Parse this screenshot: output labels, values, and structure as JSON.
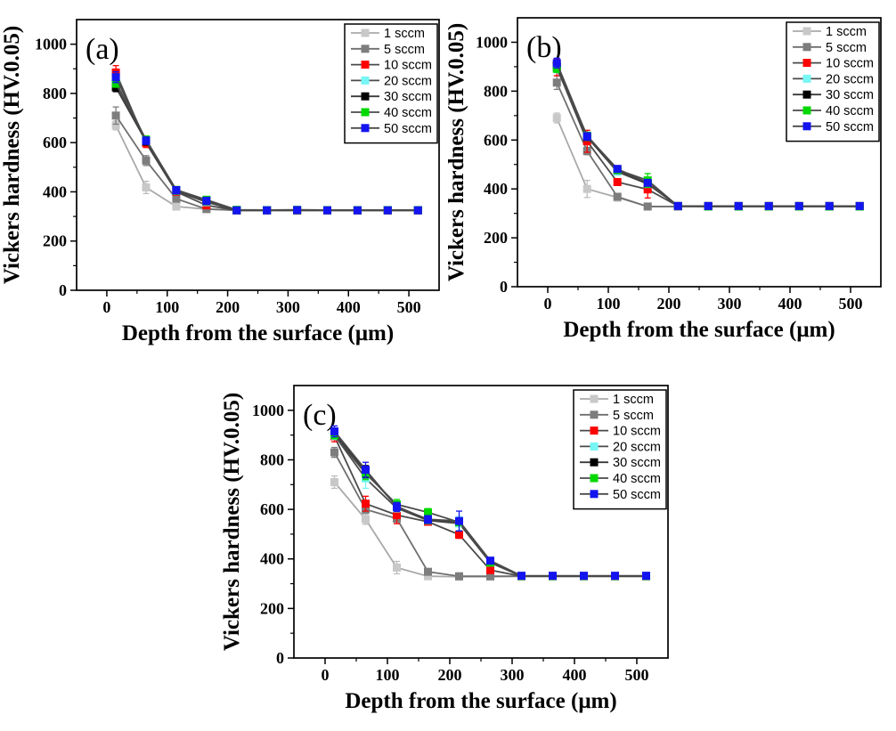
{
  "figure": {
    "xlabel": "Depth from the surface (μm)",
    "ylabel": "Vickers hardness (HV.0.05)"
  },
  "chart_data": [
    {
      "type": "line",
      "panel_label": "(a)",
      "xlabel": "Depth from the surface (μm)",
      "ylabel": "Vickers hardness (HV.0.05)",
      "xlim": [
        -50,
        550
      ],
      "ylim": [
        0,
        1100
      ],
      "xticks": [
        0,
        100,
        200,
        300,
        400,
        500
      ],
      "yticks": [
        0,
        200,
        400,
        600,
        800,
        1000
      ],
      "minor_xtick_step": 50,
      "minor_ytick_step": 100,
      "grid": false,
      "marker": "square",
      "legend_position": "top-right",
      "x": [
        15,
        65,
        115,
        165,
        215,
        265,
        315,
        365,
        415,
        465,
        515
      ],
      "series": [
        {
          "name": "1 sccm",
          "color": "#c8c8c8",
          "line_color": "#a9a9a9",
          "values": [
            670,
            418,
            340,
            330,
            325,
            325,
            325,
            325,
            325,
            325,
            325
          ],
          "errors": [
            18,
            25,
            8,
            5,
            4,
            4,
            4,
            4,
            4,
            4,
            4
          ]
        },
        {
          "name": "5 sccm",
          "color": "#7d7d7d",
          "line_color": "#6f6f6f",
          "values": [
            710,
            527,
            372,
            330,
            325,
            325,
            325,
            325,
            325,
            325,
            325
          ],
          "errors": [
            35,
            20,
            10,
            5,
            4,
            4,
            4,
            4,
            4,
            4,
            4
          ]
        },
        {
          "name": "10 sccm",
          "color": "#ff0000",
          "line_color": "#4a4a4a",
          "values": [
            885,
            598,
            400,
            345,
            325,
            325,
            325,
            325,
            325,
            325,
            325
          ],
          "errors": [
            28,
            18,
            8,
            6,
            4,
            4,
            4,
            4,
            4,
            4,
            4
          ]
        },
        {
          "name": "20 sccm",
          "color": "#76f6f4",
          "line_color": "#4a4a4a",
          "values": [
            845,
            610,
            403,
            358,
            325,
            325,
            325,
            325,
            325,
            325,
            325
          ],
          "errors": [
            20,
            15,
            8,
            6,
            4,
            4,
            4,
            4,
            4,
            4,
            4
          ]
        },
        {
          "name": "30 sccm",
          "color": "#000000",
          "line_color": "#3a3a3a",
          "values": [
            825,
            605,
            405,
            362,
            325,
            325,
            325,
            325,
            325,
            325,
            325
          ],
          "errors": [
            18,
            15,
            8,
            6,
            4,
            4,
            4,
            4,
            4,
            4,
            4
          ]
        },
        {
          "name": "40 sccm",
          "color": "#00d800",
          "line_color": "#4a4a4a",
          "values": [
            840,
            612,
            408,
            368,
            327,
            326,
            327,
            326,
            326,
            326,
            326
          ],
          "errors": [
            15,
            15,
            8,
            6,
            4,
            4,
            4,
            4,
            4,
            4,
            4
          ]
        },
        {
          "name": "50 sccm",
          "color": "#1414f0",
          "line_color": "#4a4a4a",
          "values": [
            866,
            608,
            407,
            364,
            325,
            325,
            326,
            325,
            325,
            325,
            325
          ],
          "errors": [
            22,
            15,
            8,
            6,
            4,
            4,
            4,
            4,
            4,
            4,
            4
          ]
        }
      ]
    },
    {
      "type": "line",
      "panel_label": "(b)",
      "xlabel": "Depth from the surface (μm)",
      "ylabel": "Vickers hardness (HV.0.05)",
      "xlim": [
        -50,
        550
      ],
      "ylim": [
        0,
        1100
      ],
      "xticks": [
        0,
        100,
        200,
        300,
        400,
        500
      ],
      "yticks": [
        0,
        200,
        400,
        600,
        800,
        1000
      ],
      "minor_xtick_step": 50,
      "minor_ytick_step": 100,
      "grid": false,
      "marker": "square",
      "legend_position": "top-right",
      "x": [
        15,
        65,
        115,
        165,
        215,
        265,
        315,
        365,
        415,
        465,
        515
      ],
      "series": [
        {
          "name": "1 sccm",
          "color": "#c8c8c8",
          "line_color": "#a9a9a9",
          "values": [
            690,
            400,
            365,
            328,
            328,
            328,
            328,
            328,
            328,
            328,
            328
          ],
          "errors": [
            20,
            35,
            15,
            5,
            4,
            4,
            4,
            4,
            4,
            4,
            4
          ]
        },
        {
          "name": "5 sccm",
          "color": "#7d7d7d",
          "line_color": "#6f6f6f",
          "values": [
            835,
            555,
            368,
            328,
            328,
            328,
            328,
            328,
            328,
            328,
            328
          ],
          "errors": [
            28,
            15,
            12,
            5,
            4,
            4,
            4,
            4,
            4,
            4,
            4
          ]
        },
        {
          "name": "10 sccm",
          "color": "#ff0000",
          "line_color": "#4a4a4a",
          "values": [
            898,
            595,
            428,
            398,
            330,
            330,
            330,
            330,
            330,
            330,
            330
          ],
          "errors": [
            35,
            45,
            12,
            35,
            4,
            4,
            4,
            4,
            4,
            4,
            4
          ]
        },
        {
          "name": "20 sccm",
          "color": "#76f6f4",
          "line_color": "#4a4a4a",
          "values": [
            895,
            612,
            470,
            420,
            330,
            330,
            330,
            330,
            330,
            330,
            330
          ],
          "errors": [
            20,
            15,
            10,
            12,
            4,
            4,
            4,
            4,
            4,
            4,
            4
          ]
        },
        {
          "name": "30 sccm",
          "color": "#000000",
          "line_color": "#3a3a3a",
          "values": [
            905,
            612,
            477,
            422,
            330,
            330,
            330,
            330,
            330,
            330,
            330
          ],
          "errors": [
            18,
            12,
            10,
            10,
            4,
            4,
            4,
            4,
            4,
            4,
            4
          ]
        },
        {
          "name": "40 sccm",
          "color": "#00d800",
          "line_color": "#4a4a4a",
          "values": [
            892,
            618,
            478,
            435,
            330,
            328,
            328,
            328,
            328,
            328,
            328
          ],
          "errors": [
            15,
            12,
            10,
            28,
            4,
            4,
            4,
            4,
            4,
            4,
            4
          ]
        },
        {
          "name": "50 sccm",
          "color": "#1414f0",
          "line_color": "#4a4a4a",
          "values": [
            915,
            615,
            482,
            425,
            330,
            330,
            330,
            330,
            330,
            330,
            330
          ],
          "errors": [
            20,
            15,
            12,
            10,
            4,
            4,
            4,
            4,
            4,
            4,
            4
          ]
        }
      ]
    },
    {
      "type": "line",
      "panel_label": "(c)",
      "xlabel": "Depth from the surface (μm)",
      "ylabel": "Vickers hardness (HV.0.05)",
      "xlim": [
        -50,
        550
      ],
      "ylim": [
        0,
        1100
      ],
      "xticks": [
        0,
        100,
        200,
        300,
        400,
        500
      ],
      "yticks": [
        0,
        200,
        400,
        600,
        800,
        1000
      ],
      "minor_xtick_step": 50,
      "minor_ytick_step": 100,
      "grid": false,
      "marker": "square",
      "legend_position": "top-right",
      "x": [
        15,
        65,
        115,
        165,
        215,
        265,
        315,
        365,
        415,
        465,
        515
      ],
      "series": [
        {
          "name": "1 sccm",
          "color": "#c8c8c8",
          "line_color": "#a9a9a9",
          "values": [
            710,
            560,
            365,
            330,
            328,
            328,
            330,
            330,
            330,
            330,
            330
          ],
          "errors": [
            25,
            20,
            25,
            8,
            4,
            4,
            4,
            4,
            4,
            4,
            4
          ]
        },
        {
          "name": "5 sccm",
          "color": "#7d7d7d",
          "line_color": "#6f6f6f",
          "values": [
            830,
            600,
            563,
            348,
            330,
            330,
            330,
            330,
            330,
            330,
            330
          ],
          "errors": [
            20,
            15,
            15,
            12,
            4,
            4,
            4,
            4,
            4,
            4,
            4
          ]
        },
        {
          "name": "10 sccm",
          "color": "#ff0000",
          "line_color": "#4a4a4a",
          "values": [
            895,
            623,
            577,
            550,
            498,
            355,
            330,
            330,
            330,
            330,
            330
          ],
          "errors": [
            22,
            30,
            35,
            12,
            15,
            12,
            4,
            4,
            4,
            4,
            4
          ]
        },
        {
          "name": "20 sccm",
          "color": "#76f6f4",
          "line_color": "#4a4a4a",
          "values": [
            900,
            725,
            605,
            555,
            543,
            385,
            330,
            330,
            330,
            330,
            330
          ],
          "errors": [
            18,
            40,
            15,
            12,
            28,
            10,
            4,
            4,
            4,
            4,
            4
          ]
        },
        {
          "name": "30 sccm",
          "color": "#000000",
          "line_color": "#3a3a3a",
          "values": [
            908,
            752,
            612,
            557,
            550,
            388,
            331,
            331,
            331,
            331,
            331
          ],
          "errors": [
            18,
            25,
            15,
            10,
            12,
            10,
            4,
            4,
            4,
            4,
            4
          ]
        },
        {
          "name": "40 sccm",
          "color": "#00d800",
          "line_color": "#4a4a4a",
          "values": [
            900,
            745,
            620,
            588,
            548,
            385,
            331,
            331,
            331,
            331,
            331
          ],
          "errors": [
            15,
            25,
            20,
            15,
            12,
            12,
            4,
            4,
            4,
            4,
            4
          ]
        },
        {
          "name": "50 sccm",
          "color": "#1414f0",
          "line_color": "#4a4a4a",
          "values": [
            915,
            760,
            610,
            560,
            553,
            393,
            332,
            332,
            332,
            332,
            332
          ],
          "errors": [
            22,
            30,
            18,
            15,
            40,
            12,
            4,
            4,
            4,
            4,
            4
          ]
        }
      ]
    }
  ]
}
